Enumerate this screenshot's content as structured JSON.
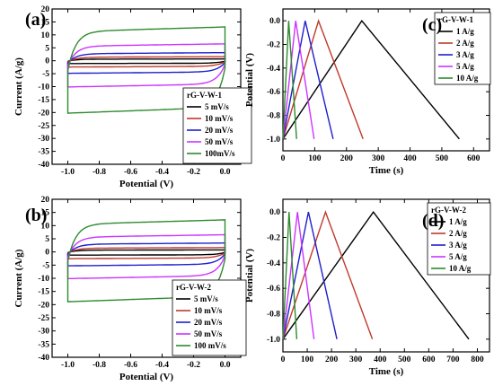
{
  "chart_data": [
    {
      "type": "line",
      "panel_label": "(a)",
      "xlabel": "Potential (V)",
      "ylabel": "Current (A/g)",
      "xlim": [
        -1.1,
        0.1
      ],
      "ylim": [
        -40,
        20
      ],
      "xticks": [
        -1.0,
        -0.8,
        -0.6,
        -0.4,
        -0.2,
        0.0
      ],
      "xtick_labels": [
        "-1.0",
        "-0.8",
        "-0.6",
        "-0.4",
        "-0.2",
        "0.0"
      ],
      "yticks": [
        -40,
        -35,
        -30,
        -25,
        -20,
        -15,
        -10,
        -5,
        0,
        5,
        10,
        15,
        20
      ],
      "ytick_labels": [
        "-40",
        "-35",
        "-30",
        "-25",
        "-20",
        "-15",
        "-10",
        "-5",
        "0",
        "5",
        "10",
        "15",
        "20"
      ],
      "legend_title": "rG-V-W-1",
      "legend_position": "center-right",
      "kind": "cv",
      "series": [
        {
          "name": "5 mV/s",
          "color": "#000000",
          "i": 0.8
        },
        {
          "name": "10 mV/s",
          "color": "#c0392b",
          "i": 1.8
        },
        {
          "name": "20 mV/s",
          "color": "#1f1fcc",
          "i": 3.6
        },
        {
          "name": "50 mV/s",
          "color": "#cc33ff",
          "i": 7.5
        },
        {
          "name": "100mV/s",
          "color": "#2e8b2e",
          "i": 15.0
        }
      ]
    },
    {
      "type": "line",
      "panel_label": "(c)",
      "xlabel": "Time (s)",
      "ylabel": "Potential (V)",
      "xlim": [
        0,
        650
      ],
      "ylim": [
        -1.1,
        0.1
      ],
      "xticks": [
        0,
        100,
        200,
        300,
        400,
        500,
        600
      ],
      "xtick_labels": [
        "0",
        "100",
        "200",
        "300",
        "400",
        "500",
        "600"
      ],
      "yticks": [
        -1.0,
        -0.8,
        -0.6,
        -0.4,
        -0.2,
        0.0
      ],
      "ytick_labels": [
        "-1.0",
        "-0.8",
        "-0.6",
        "-0.4",
        "-0.2",
        "0.0"
      ],
      "legend_title": "rG-V-W-1",
      "legend_position": "top-right",
      "kind": "gcd",
      "series": [
        {
          "name": "1 A/g",
          "color": "#000000",
          "peak": 248,
          "end": 555
        },
        {
          "name": "2 A/g",
          "color": "#c0392b",
          "peak": 112,
          "end": 252
        },
        {
          "name": "3 A/g",
          "color": "#1f1fcc",
          "peak": 70,
          "end": 158
        },
        {
          "name": "5 A/g",
          "color": "#cc33ff",
          "peak": 40,
          "end": 98
        },
        {
          "name": "10 A/g",
          "color": "#2e8b2e",
          "peak": 18,
          "end": 43
        }
      ]
    },
    {
      "type": "line",
      "panel_label": "(b)",
      "xlabel": "Potential (V)",
      "ylabel": "Current (A/g)",
      "xlim": [
        -1.1,
        0.1
      ],
      "ylim": [
        -40,
        20
      ],
      "xticks": [
        -1.0,
        -0.8,
        -0.6,
        -0.4,
        -0.2,
        0.0
      ],
      "xtick_labels": [
        "-1.0",
        "-0.8",
        "-0.6",
        "-0.4",
        "-0.2",
        "0.0"
      ],
      "yticks": [
        -40,
        -35,
        -30,
        -25,
        -20,
        -15,
        -10,
        -5,
        0,
        5,
        10,
        15,
        20
      ],
      "ytick_labels": [
        "-40",
        "-35",
        "-30",
        "-25",
        "-20",
        "-15",
        "-10",
        "-5",
        "0",
        "5",
        "10",
        "15",
        "20"
      ],
      "legend_title": "rG-V-W-2",
      "legend_position": "bottom-right",
      "kind": "cv",
      "series": [
        {
          "name": "5 mV/s",
          "color": "#000000",
          "i": 0.9
        },
        {
          "name": "10 mV/s",
          "color": "#c0392b",
          "i": 1.9
        },
        {
          "name": "20 mV/s",
          "color": "#1f1fcc",
          "i": 3.9
        },
        {
          "name": "50 mV/s",
          "color": "#cc33ff",
          "i": 7.5
        },
        {
          "name": "100 mV/s",
          "color": "#2e8b2e",
          "i": 14.0
        }
      ]
    },
    {
      "type": "line",
      "panel_label": "(d)",
      "xlabel": "Time (s)",
      "ylabel": "Potential (V)",
      "xlim": [
        0,
        850
      ],
      "ylim": [
        -1.1,
        0.1
      ],
      "xticks": [
        0,
        100,
        200,
        300,
        400,
        500,
        600,
        700,
        800
      ],
      "xtick_labels": [
        "0",
        "100",
        "200",
        "300",
        "400",
        "500",
        "600",
        "700",
        "800"
      ],
      "yticks": [
        -1.0,
        -0.8,
        -0.6,
        -0.4,
        -0.2,
        0.0
      ],
      "ytick_labels": [
        "-1.0",
        "-0.8",
        "-0.6",
        "-0.4",
        "-0.2",
        "0.0"
      ],
      "legend_title": "rG-V-W-2",
      "legend_position": "top-right",
      "kind": "gcd",
      "series": [
        {
          "name": "1 A/g",
          "color": "#000000",
          "peak": 372,
          "end": 765
        },
        {
          "name": "2 A/g",
          "color": "#c0392b",
          "peak": 175,
          "end": 368
        },
        {
          "name": "3 A/g",
          "color": "#1f1fcc",
          "peak": 105,
          "end": 222
        },
        {
          "name": "5 A/g",
          "color": "#cc33ff",
          "peak": 60,
          "end": 128
        },
        {
          "name": "10 A/g",
          "color": "#2e8b2e",
          "peak": 25,
          "end": 57
        }
      ]
    }
  ]
}
